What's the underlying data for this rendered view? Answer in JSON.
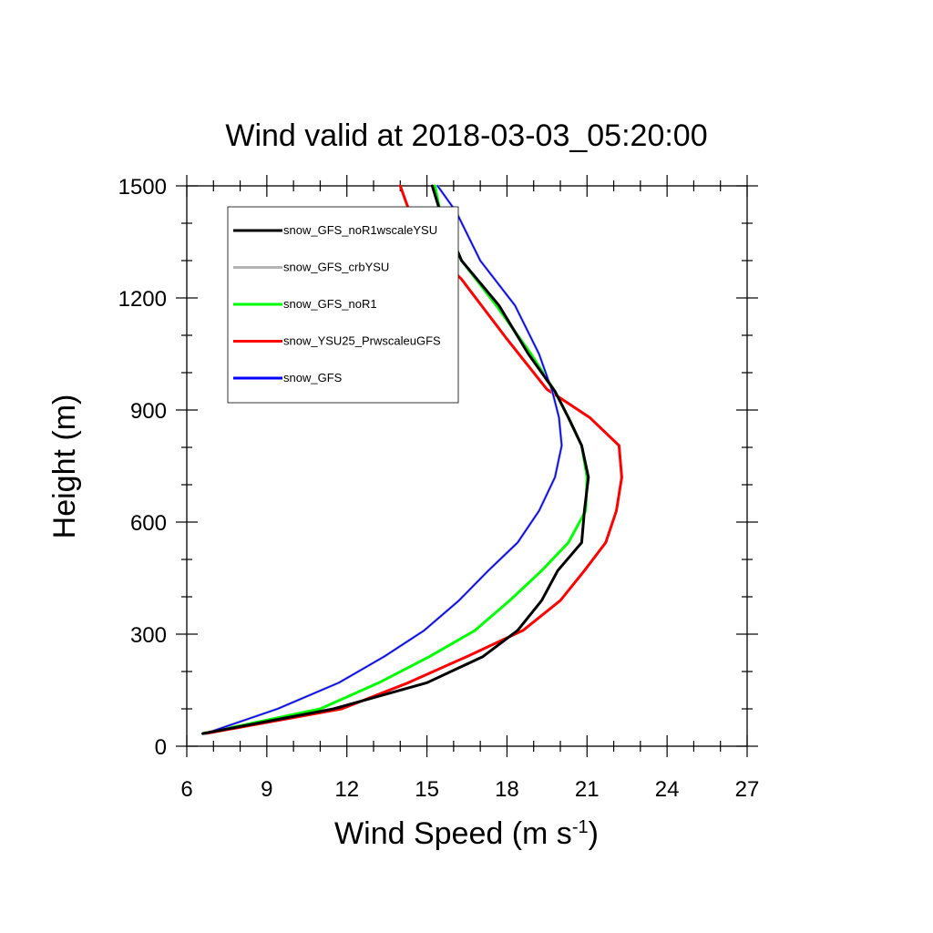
{
  "chart_data": {
    "type": "line",
    "title": "Wind valid at 2018-03-03_05:20:00",
    "xlabel_main": "Wind Speed (m s",
    "xlabel_sup": "-1",
    "xlabel_end": ")",
    "ylabel": "Height (m)",
    "xlim": [
      6,
      27
    ],
    "ylim": [
      0,
      1500
    ],
    "xticks": [
      6,
      9,
      12,
      15,
      18,
      21,
      24,
      27
    ],
    "yticks": [
      0,
      300,
      600,
      900,
      1200,
      1500
    ],
    "legend_placement": "top-left",
    "series": [
      {
        "name": "snow_GFS_noR1wscaleYSU",
        "color": "#000000",
        "points": [
          [
            6.6,
            34
          ],
          [
            11.5,
            100
          ],
          [
            15,
            170
          ],
          [
            17.1,
            240
          ],
          [
            18.4,
            310
          ],
          [
            19.3,
            390
          ],
          [
            19.9,
            470
          ],
          [
            20.8,
            545
          ],
          [
            20.9,
            630
          ],
          [
            21.05,
            720
          ],
          [
            20.8,
            805
          ],
          [
            20.3,
            880
          ],
          [
            19.8,
            950
          ],
          [
            18.8,
            1050
          ],
          [
            17.7,
            1180
          ],
          [
            16.3,
            1300
          ],
          [
            15.5,
            1430
          ],
          [
            15.2,
            1500
          ]
        ]
      },
      {
        "name": "snow_GFS_crbYSU",
        "color": "#b4b4b4",
        "points": [
          [
            6.7,
            34
          ],
          [
            9.4,
            100
          ],
          [
            11.7,
            170
          ],
          [
            13.4,
            240
          ],
          [
            14.9,
            310
          ],
          [
            16.2,
            390
          ],
          [
            17.3,
            470
          ],
          [
            18.4,
            545
          ],
          [
            19.2,
            630
          ],
          [
            19.8,
            720
          ],
          [
            20.05,
            805
          ],
          [
            19.95,
            880
          ],
          [
            19.7,
            950
          ],
          [
            19.2,
            1050
          ],
          [
            18.3,
            1180
          ],
          [
            17,
            1300
          ],
          [
            16.1,
            1430
          ],
          [
            15.4,
            1500
          ]
        ]
      },
      {
        "name": "snow_GFS_noR1",
        "color": "#00ff00",
        "points": [
          [
            6.6,
            34
          ],
          [
            11,
            100
          ],
          [
            13.2,
            170
          ],
          [
            15.1,
            240
          ],
          [
            16.8,
            310
          ],
          [
            18.1,
            390
          ],
          [
            19.3,
            470
          ],
          [
            20.3,
            545
          ],
          [
            20.95,
            630
          ],
          [
            21,
            720
          ],
          [
            20.8,
            805
          ],
          [
            20.3,
            880
          ],
          [
            19.8,
            950
          ],
          [
            18.9,
            1050
          ],
          [
            17.6,
            1180
          ],
          [
            16.3,
            1300
          ],
          [
            15.5,
            1430
          ],
          [
            15.3,
            1500
          ]
        ]
      },
      {
        "name": "snow_YSU25_PrwscaleuGFS",
        "color": "#ff0000",
        "points": [
          [
            6.7,
            34
          ],
          [
            11.8,
            100
          ],
          [
            14.3,
            170
          ],
          [
            16.5,
            240
          ],
          [
            18.6,
            310
          ],
          [
            20,
            390
          ],
          [
            20.9,
            470
          ],
          [
            21.7,
            545
          ],
          [
            22.1,
            630
          ],
          [
            22.3,
            720
          ],
          [
            22.2,
            805
          ],
          [
            21.1,
            880
          ],
          [
            19.5,
            955
          ],
          [
            18,
            1090
          ],
          [
            16.3,
            1250
          ],
          [
            15.2,
            1330
          ],
          [
            14.4,
            1420
          ],
          [
            14,
            1500
          ]
        ]
      },
      {
        "name": "snow_GFS",
        "color": "#0000ff",
        "points": [
          [
            6.7,
            34
          ],
          [
            9.4,
            100
          ],
          [
            11.7,
            170
          ],
          [
            13.4,
            240
          ],
          [
            14.9,
            310
          ],
          [
            16.2,
            390
          ],
          [
            17.3,
            470
          ],
          [
            18.4,
            545
          ],
          [
            19.2,
            630
          ],
          [
            19.8,
            720
          ],
          [
            20.05,
            805
          ],
          [
            19.95,
            880
          ],
          [
            19.7,
            950
          ],
          [
            19.2,
            1050
          ],
          [
            18.3,
            1180
          ],
          [
            17,
            1300
          ],
          [
            16.1,
            1430
          ],
          [
            15.4,
            1500
          ]
        ]
      }
    ]
  }
}
